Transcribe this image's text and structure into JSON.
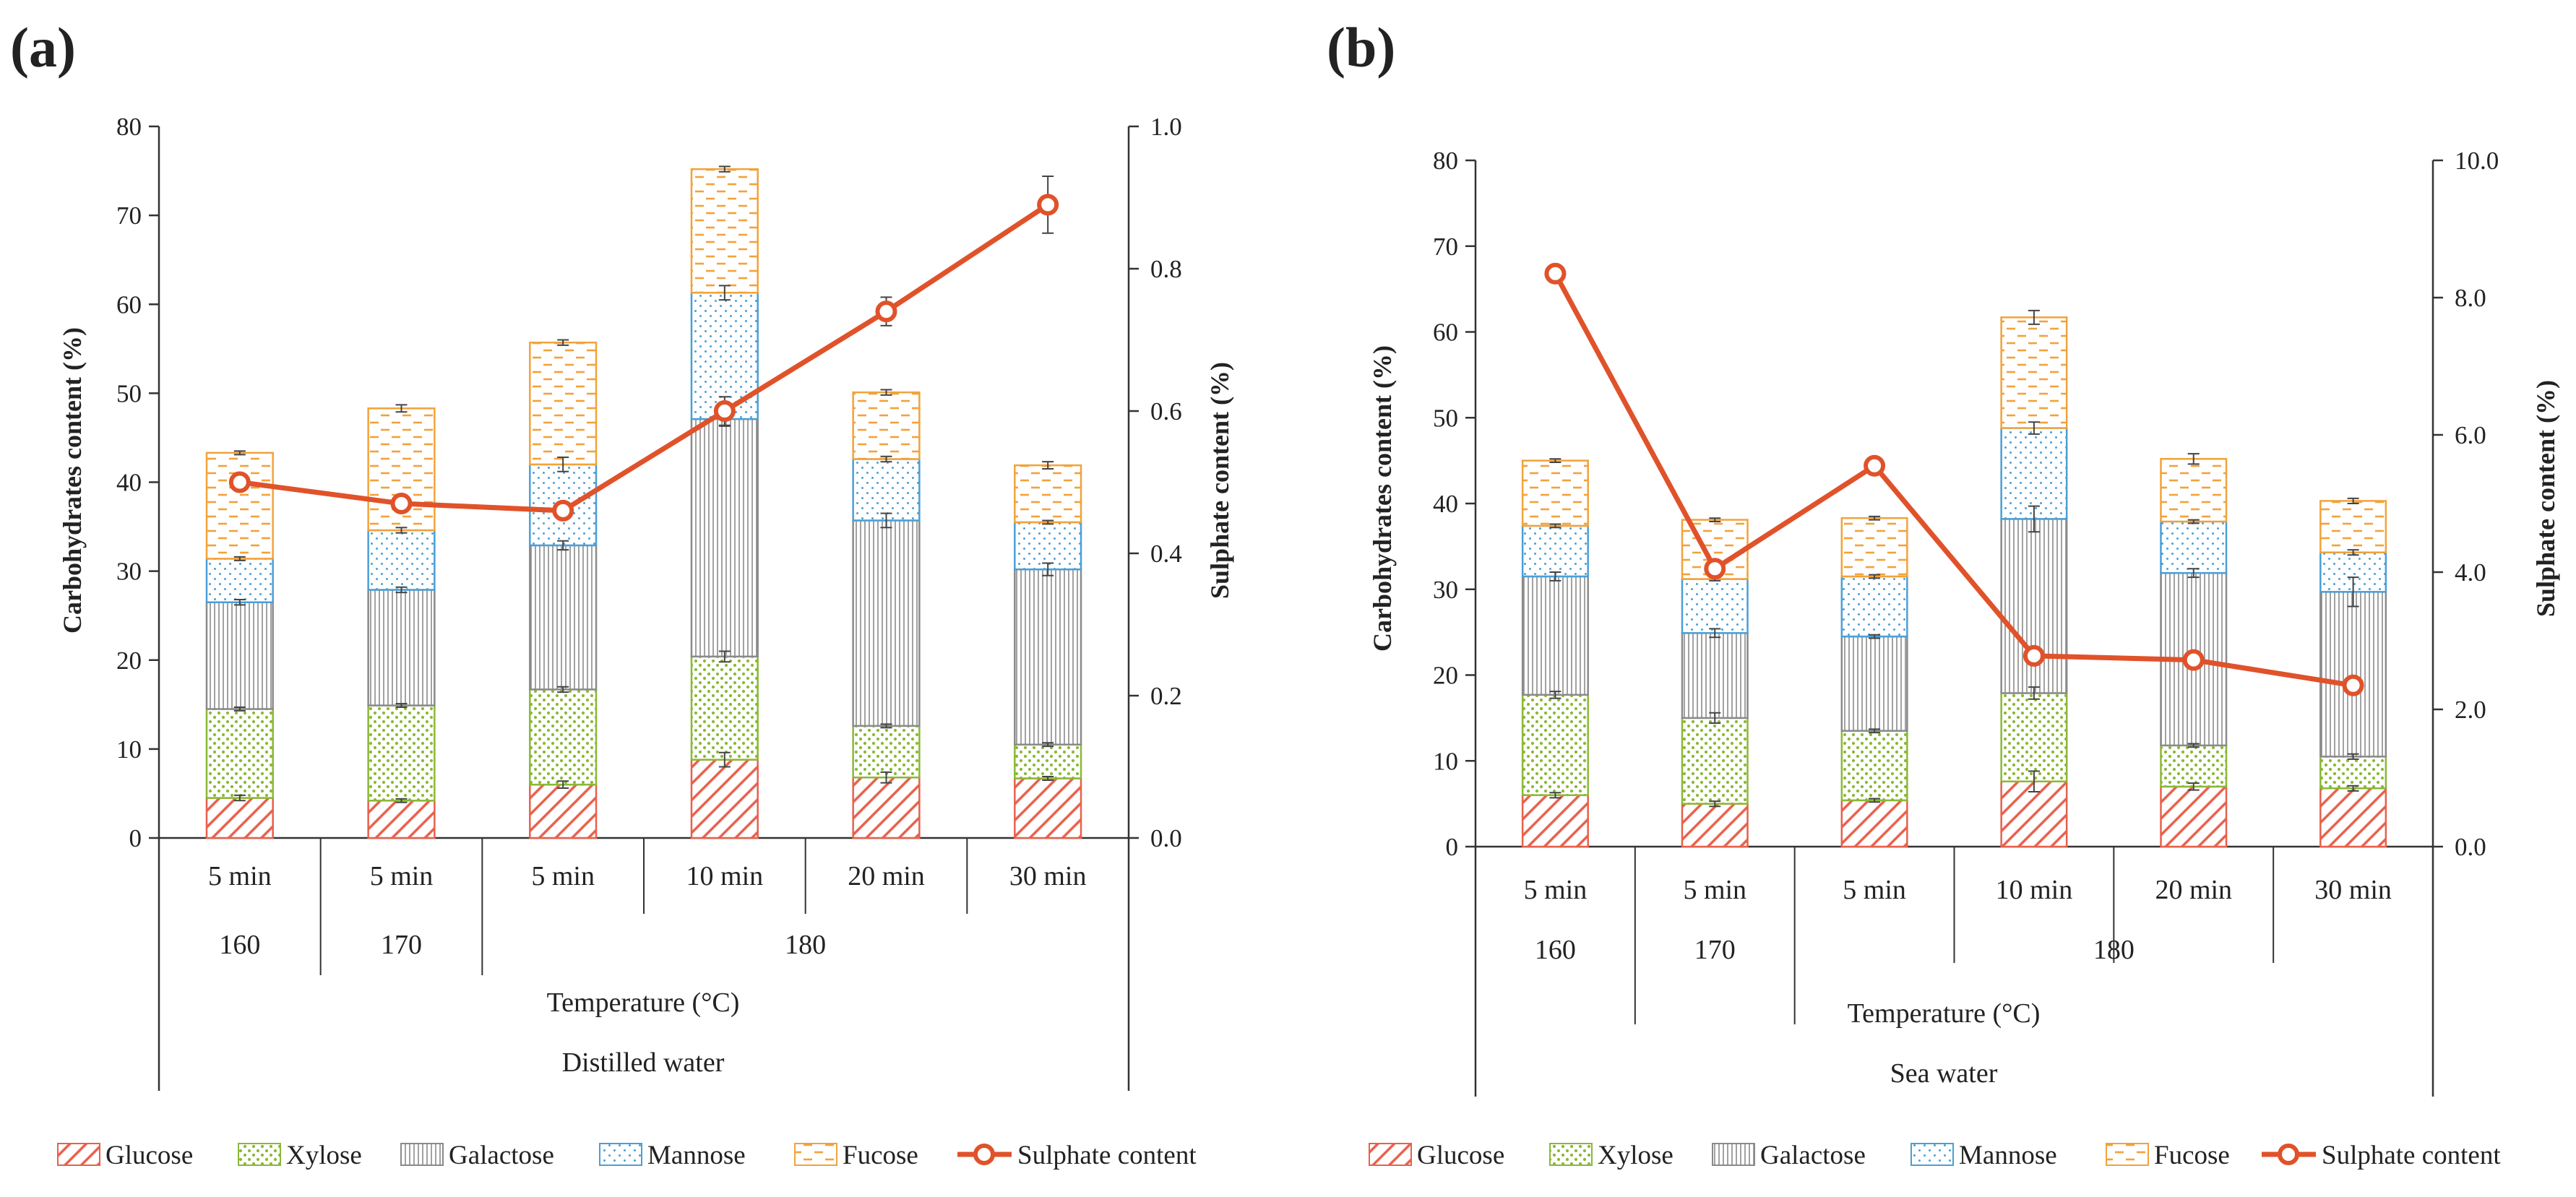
{
  "chart_data": [
    {
      "panel_label": "(a)",
      "type": "bar",
      "stacked": true,
      "categories": [
        "5 min",
        "5 min",
        "5 min",
        "10 min",
        "20 min",
        "30 min"
      ],
      "category_groups": [
        {
          "label": "160",
          "span": 1
        },
        {
          "label": "170",
          "span": 1
        },
        {
          "label": "180",
          "span": 4
        }
      ],
      "xlabel": "Temperature (°C)",
      "condition": "Distilled water",
      "ylabel": "Carbohydrates content (%)",
      "y2label": "Sulphate content (%)",
      "ylim": [
        0,
        80
      ],
      "yticks": [
        "0",
        "10",
        "20",
        "30",
        "40",
        "50",
        "60",
        "70",
        "80"
      ],
      "y2lim": [
        0,
        1.0
      ],
      "y2ticks": [
        "0.0",
        "0.2",
        "0.4",
        "0.6",
        "0.8",
        "1.0"
      ],
      "series": [
        {
          "name": "Glucose",
          "values": [
            4.5,
            4.2,
            6.0,
            8.8,
            6.8,
            6.7
          ],
          "errors": [
            0.3,
            0.2,
            0.4,
            0.8,
            0.6,
            0.2
          ]
        },
        {
          "name": "Xylose",
          "values": [
            10.0,
            10.7,
            10.7,
            11.6,
            5.8,
            3.8
          ],
          "errors": [
            0.2,
            0.2,
            0.3,
            0.6,
            0.2,
            0.2
          ]
        },
        {
          "name": "Galactose",
          "values": [
            12.0,
            13.0,
            16.2,
            26.7,
            23.1,
            19.7
          ],
          "errors": [
            0.3,
            0.3,
            0.5,
            0.8,
            0.8,
            0.7
          ]
        },
        {
          "name": "Mannose",
          "values": [
            4.9,
            6.7,
            9.1,
            14.2,
            6.9,
            5.3
          ],
          "errors": [
            0.2,
            0.3,
            0.8,
            0.8,
            0.3,
            0.2
          ]
        },
        {
          "name": "Fucose",
          "values": [
            11.9,
            13.7,
            13.7,
            13.9,
            7.5,
            6.4
          ],
          "errors": [
            0.2,
            0.4,
            0.3,
            0.3,
            0.3,
            0.4
          ]
        },
        {
          "name": "Sulphate content",
          "type": "line",
          "axis": "right",
          "values": [
            0.5,
            0.47,
            0.46,
            0.6,
            0.74,
            0.89
          ],
          "errors": [
            0.01,
            0.01,
            0.01,
            0.02,
            0.02,
            0.04
          ]
        }
      ],
      "grid": false,
      "legend_position": "bottom"
    },
    {
      "panel_label": "(b)",
      "type": "bar",
      "stacked": true,
      "categories": [
        "5 min",
        "5 min",
        "5 min",
        "10 min",
        "20 min",
        "30 min"
      ],
      "category_groups": [
        {
          "label": "160",
          "span": 1
        },
        {
          "label": "170",
          "span": 1
        },
        {
          "label": "180",
          "span": 4
        }
      ],
      "xlabel": "Temperature (°C)",
      "condition": "Sea water",
      "ylabel": "Carbohydrates content (%)",
      "y2label": "Sulphate content (%)",
      "ylim": [
        0,
        80
      ],
      "yticks": [
        "0",
        "10",
        "20",
        "30",
        "40",
        "50",
        "60",
        "70",
        "80"
      ],
      "y2lim": [
        0,
        10.0
      ],
      "y2ticks": [
        "0.0",
        "2.0",
        "4.0",
        "6.0",
        "8.0",
        "10.0"
      ],
      "series": [
        {
          "name": "Glucose",
          "values": [
            6.0,
            5.0,
            5.4,
            7.6,
            7.0,
            6.8
          ],
          "errors": [
            0.3,
            0.3,
            0.2,
            1.2,
            0.4,
            0.3
          ]
        },
        {
          "name": "Xylose",
          "values": [
            11.7,
            10.0,
            8.1,
            10.3,
            4.8,
            3.7
          ],
          "errors": [
            0.4,
            0.6,
            0.2,
            0.7,
            0.2,
            0.3
          ]
        },
        {
          "name": "Galactose",
          "values": [
            13.8,
            9.9,
            11.0,
            20.3,
            20.1,
            19.2
          ],
          "errors": [
            0.5,
            0.5,
            0.2,
            1.5,
            0.5,
            1.7
          ]
        },
        {
          "name": "Mannose",
          "values": [
            5.9,
            6.3,
            7.0,
            10.6,
            6.0,
            4.6
          ],
          "errors": [
            0.2,
            0.2,
            0.2,
            0.7,
            0.2,
            0.3
          ]
        },
        {
          "name": "Fucose",
          "values": [
            7.6,
            6.9,
            6.8,
            12.9,
            7.3,
            6.0
          ],
          "errors": [
            0.2,
            0.2,
            0.2,
            0.8,
            0.6,
            0.3
          ]
        },
        {
          "name": "Sulphate content",
          "type": "line",
          "axis": "right",
          "values": [
            8.35,
            4.05,
            5.55,
            2.78,
            2.72,
            2.35
          ],
          "errors": [
            0.05,
            0.05,
            0.12,
            0.05,
            0.05,
            0.05
          ]
        }
      ],
      "grid": false,
      "legend_position": "bottom"
    }
  ],
  "colors": {
    "Glucose": "#e8604c",
    "Xylose": "#8bb836",
    "Galactose": "#8a8a8a",
    "Mannose": "#4a9fd6",
    "Fucose": "#f2a23a",
    "Sulphate content": "#e0522a",
    "axis": "#333333",
    "error": "#444444"
  }
}
